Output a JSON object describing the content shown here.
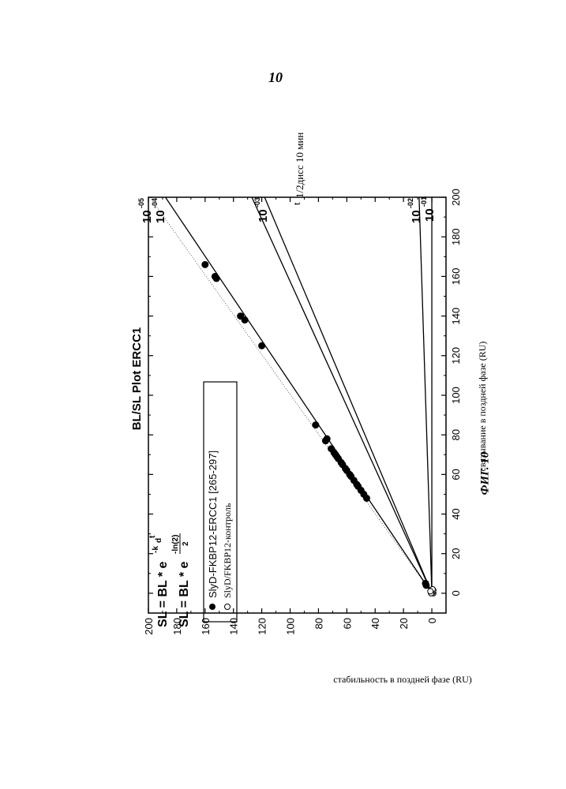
{
  "page_number": "10",
  "figure_caption": "ФИГ. 10",
  "chart_data": {
    "type": "scatter",
    "orientation": "rotated-90-ccw",
    "title": "BL/SL Plot ERCC1",
    "xlabel": "связывание в поздней фазе (RU)",
    "ylabel": "стабильность в поздней фазе (RU)",
    "xlim": [
      -10,
      200
    ],
    "ylim": [
      -10,
      200
    ],
    "xticks": [
      0,
      20,
      40,
      60,
      80,
      100,
      120,
      140,
      160,
      180,
      200
    ],
    "yticks": [
      0,
      20,
      40,
      60,
      80,
      100,
      120,
      140,
      160,
      180,
      200
    ],
    "equations": {
      "eq1": {
        "main": "SL = BL * e",
        "sup": "-k",
        "sub": "d",
        "sup2": "t"
      },
      "eq2": {
        "main": "SL = BL * e",
        "sup_num": "-ln(2)",
        "sup_den": "2"
      }
    },
    "legend": [
      {
        "marker": "filled-circle",
        "label": "SlyD-FKBP12-ERCC1 [265-297]"
      },
      {
        "marker": "open-circle",
        "label": "SlyD/FKBP12-контроль"
      }
    ],
    "series": [
      {
        "name": "SlyD-FKBP12-ERCC1 [265-297]",
        "marker": "filled",
        "points": [
          [
            4,
            4
          ],
          [
            5,
            4.5
          ],
          [
            48,
            46
          ],
          [
            50,
            48
          ],
          [
            52,
            50
          ],
          [
            54,
            52
          ],
          [
            55,
            53
          ],
          [
            57,
            55
          ],
          [
            59,
            57
          ],
          [
            60,
            58
          ],
          [
            62,
            60
          ],
          [
            63,
            61
          ],
          [
            65,
            63
          ],
          [
            66,
            64
          ],
          [
            68,
            66
          ],
          [
            69,
            67
          ],
          [
            70,
            68
          ],
          [
            71,
            69
          ],
          [
            73,
            71
          ],
          [
            77,
            75
          ],
          [
            78,
            74
          ],
          [
            85,
            82
          ],
          [
            125,
            120
          ],
          [
            138,
            132
          ],
          [
            140,
            135
          ],
          [
            159,
            152
          ],
          [
            160,
            153
          ],
          [
            166,
            160
          ]
        ]
      },
      {
        "name": "SlyD/FKBP12-контроль",
        "marker": "open",
        "points": [
          [
            0,
            -1
          ],
          [
            0.5,
            -0.5
          ],
          [
            1,
            0
          ],
          [
            1.5,
            -1
          ],
          [
            2,
            -0.5
          ],
          [
            0,
            0.5
          ],
          [
            1,
            1
          ]
        ]
      }
    ],
    "reference_lines": [
      {
        "label_base": "10",
        "label_exp": "-05",
        "y_at_200": 199
      },
      {
        "label_base": "10",
        "label_exp": "-04",
        "y_at_200": 188
      },
      {
        "label_base": "10",
        "label_exp": "-03",
        "y_at_200": 127
      },
      {
        "label_base": "10",
        "label_exp": "-02",
        "y_at_200": 9
      },
      {
        "label_base": "10",
        "label_exp": "-01",
        "y_at_200": 0
      },
      {
        "label_base": "",
        "label_exp": "",
        "y_at_200": 118
      }
    ],
    "reference_lines_note": "",
    "thalf_label": {
      "main": "t",
      "sub": "1/2дисс 10 мин"
    }
  }
}
